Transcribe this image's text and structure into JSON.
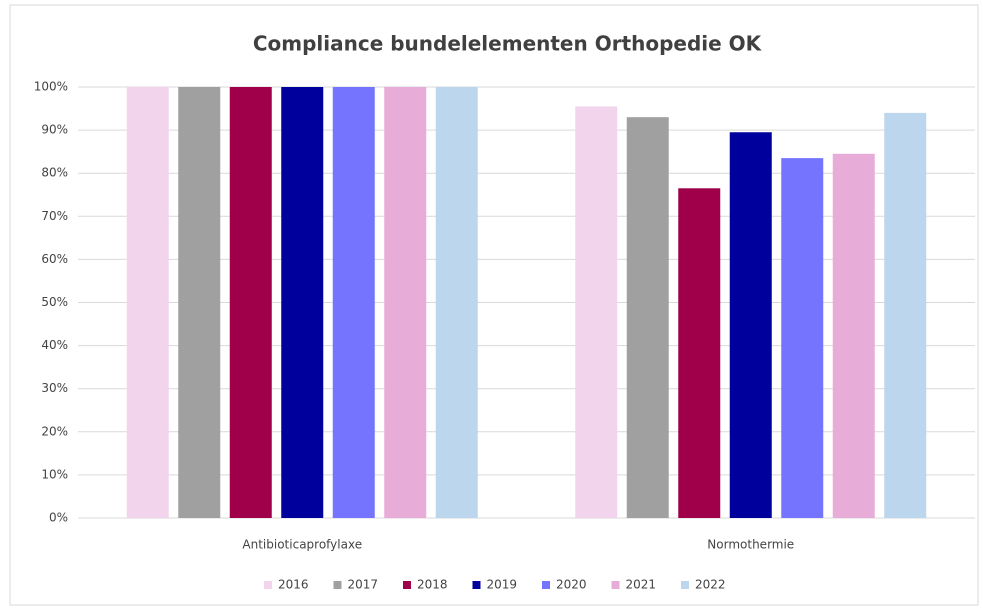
{
  "chart_data": {
    "type": "bar",
    "title": "Compliance bundelelementen Orthopedie OK",
    "categories": [
      "Antibioticaprofylaxe",
      "Normothermie"
    ],
    "series": [
      {
        "name": "2016",
        "color": "#f2d5ec",
        "values": [
          100,
          95.5
        ]
      },
      {
        "name": "2017",
        "color": "#a0a0a0",
        "values": [
          100,
          93
        ]
      },
      {
        "name": "2018",
        "color": "#a0004a",
        "values": [
          100,
          76.5
        ]
      },
      {
        "name": "2019",
        "color": "#00009c",
        "values": [
          100,
          89.5
        ]
      },
      {
        "name": "2020",
        "color": "#7474ff",
        "values": [
          100,
          83.5
        ]
      },
      {
        "name": "2021",
        "color": "#e8acd8",
        "values": [
          100,
          84.5
        ]
      },
      {
        "name": "2022",
        "color": "#bcd6ee",
        "values": [
          100,
          94
        ]
      }
    ],
    "ylim": [
      0,
      100
    ],
    "yticks": [
      {
        "value": 0,
        "label": "0%"
      },
      {
        "value": 10,
        "label": "10%"
      },
      {
        "value": 20,
        "label": "20%"
      },
      {
        "value": 30,
        "label": "30%"
      },
      {
        "value": 40,
        "label": "40%"
      },
      {
        "value": 50,
        "label": "50%"
      },
      {
        "value": 60,
        "label": "60%"
      },
      {
        "value": 70,
        "label": "70%"
      },
      {
        "value": 80,
        "label": "80%"
      },
      {
        "value": 90,
        "label": "90%"
      },
      {
        "value": 100,
        "label": "100%"
      }
    ],
    "grid": true,
    "legend": "bottom"
  }
}
